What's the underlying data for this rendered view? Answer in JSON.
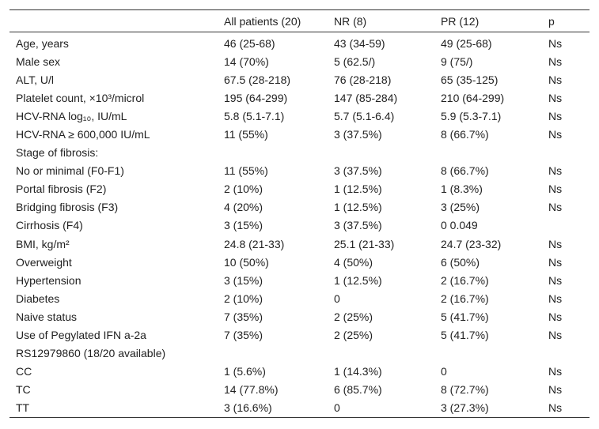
{
  "table": {
    "header": [
      "All patients (20)",
      "NR (8)",
      "PR (12)",
      "p"
    ],
    "rows": [
      [
        "Age, years",
        "46 (25-68)",
        "43 (34-59)",
        "49 (25-68)",
        "Ns"
      ],
      [
        "Male sex",
        "14 (70%)",
        "5 (62.5/)",
        "9 (75/)",
        "Ns"
      ],
      [
        "ALT, U/l",
        "67.5 (28-218)",
        "76 (28-218)",
        "65 (35-125)",
        "Ns"
      ],
      [
        "Platelet count, ×10³/microl",
        "195 (64-299)",
        "147 (85-284)",
        "210 (64-299)",
        "Ns"
      ],
      [
        "HCV-RNA log₁₀, IU/mL",
        "5.8 (5.1-7.1)",
        "5.7 (5.1-6.4)",
        "5.9 (5.3-7.1)",
        "Ns"
      ],
      [
        "HCV-RNA ≥ 600,000 IU/mL",
        "11 (55%)",
        "3 (37.5%)",
        "8 (66.7%)",
        "Ns"
      ],
      [
        "Stage of fibrosis:"
      ],
      [
        "No or minimal (F0-F1)",
        "11 (55%)",
        "3 (37.5%)",
        "8 (66.7%)",
        "Ns"
      ],
      [
        "Portal fibrosis (F2)",
        "2 (10%)",
        "1 (12.5%)",
        "1 (8.3%)",
        "Ns"
      ],
      [
        "Bridging fibrosis (F3)",
        "4 (20%)",
        "1 (12.5%)",
        "3 (25%)",
        "Ns"
      ],
      [
        "Cirrhosis (F4)",
        "3 (15%)",
        "3 (37.5%)",
        "0 0.049"
      ],
      [
        "BMI, kg/m²",
        "24.8 (21-33)",
        "25.1 (21-33)",
        "24.7 (23-32)",
        "Ns"
      ],
      [
        "Overweight",
        "10 (50%)",
        "4 (50%)",
        "6 (50%)",
        "Ns"
      ],
      [
        "Hypertension",
        "3 (15%)",
        "1 (12.5%)",
        "2 (16.7%)",
        "Ns"
      ],
      [
        "Diabetes",
        "2 (10%)",
        "0",
        "2 (16.7%)",
        "Ns"
      ],
      [
        "Naive status",
        "7 (35%)",
        "2 (25%)",
        "5 (41.7%)",
        "Ns"
      ],
      [
        "Use of Pegylated IFN a-2a",
        "7 (35%)",
        "2 (25%)",
        "5 (41.7%)",
        "Ns"
      ],
      [
        "RS12979860 (18/20 available)"
      ],
      [
        "CC",
        "1 (5.6%)",
        "1 (14.3%)",
        "0",
        "Ns"
      ],
      [
        "TC",
        "14 (77.8%)",
        "6 (85.7%)",
        "8 (72.7%)",
        "Ns"
      ],
      [
        "TT",
        "3 (16.6%)",
        "0",
        "3 (27.3%)",
        "Ns"
      ]
    ]
  }
}
